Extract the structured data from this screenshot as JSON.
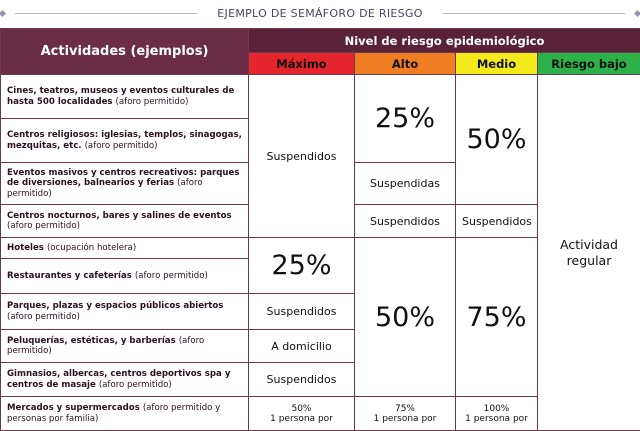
{
  "banner": {
    "title": "EJEMPLO DE SEMÁFORO DE RIESGO"
  },
  "header": {
    "activities": "Actividades (ejemplos)",
    "risk_level": "Nivel de riesgo epidemiológico",
    "levels": [
      "Máximo",
      "Alto",
      "Medio",
      "Riesgo bajo"
    ]
  },
  "colors": {
    "maximo": "#e4262c",
    "alto": "#f07d22",
    "medio": "#f5ea1b",
    "bajo": "#2fb14a",
    "header": "#6b2d45"
  },
  "rows": [
    {
      "main": "Cines, teatros, museos y eventos culturales de hasta 500 localidades",
      "note": "(aforo permitido)"
    },
    {
      "main": "Centros religiosos: iglesias, templos, sinagogas, mezquitas, etc.",
      "note": "(aforo permitido)"
    },
    {
      "main": "Eventos masivos y centros recreativos: parques de diversiones, balnearios y ferias",
      "note": "(aforo permitido)"
    },
    {
      "main": "Centros nocturnos, bares y salines de eventos",
      "note": "(aforo permitido)"
    },
    {
      "main": "Hoteles",
      "note": "(ocupación hotelera)"
    },
    {
      "main": "Restaurantes y cafeterías",
      "note": "(aforo permitido)"
    },
    {
      "main": "Parques, plazas y espacios públicos abiertos",
      "note": "(aforo permitido)"
    },
    {
      "main": "Peluquerías, estéticas, y barberías",
      "note": "(aforo permitido)"
    },
    {
      "main": "Gimnasios, albercas, centros deportivos spa y centros de masaje",
      "note": "(aforo permitido)"
    },
    {
      "main": "Mercados y supermercados",
      "note": "(aforo permitido y personas por familia)"
    }
  ],
  "cells": {
    "max_suspendidos": "Suspendidos",
    "max_25": "25%",
    "max_parques": "Suspendidos",
    "max_peluquerias": "A domicilio",
    "max_gimnasios": "Suspendidos",
    "max_mercados_1": "50%",
    "max_mercados_2": "1 persona por",
    "alto_25": "25%",
    "alto_eventos": "Suspendidas",
    "alto_nocturnos": "Suspendidos",
    "alto_50": "50%",
    "alto_mercados_1": "75%",
    "alto_mercados_2": "1 persona por",
    "medio_50": "50%",
    "medio_nocturnos": "Suspendidos",
    "medio_75": "75%",
    "medio_mercados_1": "100%",
    "medio_mercados_2": "1 persona por",
    "bajo": "Actividad regular"
  }
}
